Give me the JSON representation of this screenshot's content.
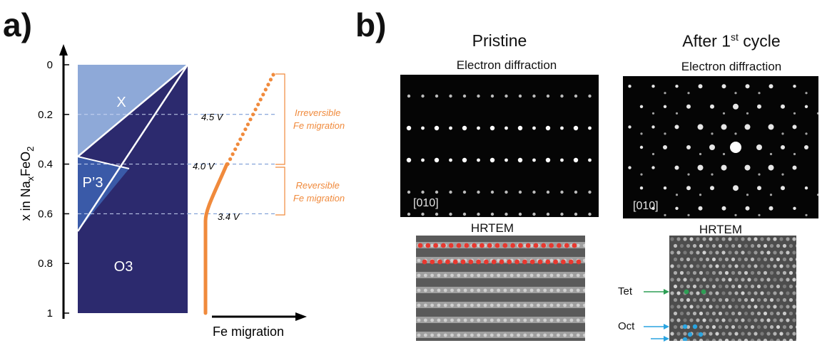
{
  "panel_a": {
    "letter": "a)",
    "y_axis_label_prefix": "x in Na",
    "y_axis_label_sub_x": "x",
    "y_axis_label_mid": "FeO",
    "y_axis_label_sub_2": "2",
    "x_axis_label": "Fe migration",
    "phase_labels": [
      "X",
      "P’3",
      "O3"
    ],
    "voltages": [
      "4.5 V",
      "4.0 V",
      "3.4 V"
    ],
    "annotation_irreversible": [
      "Irreversible",
      "Fe migration"
    ],
    "annotation_reversible": [
      "Reversible",
      "Fe migration"
    ],
    "colors": {
      "phase_x": "#8ea9d8",
      "phase_p3": "#3a5aa8",
      "phase_o3": "#2c2a6e",
      "orange": "#f08a3c",
      "guide": "#6a8fd0"
    }
  },
  "chart_data": {
    "type": "line",
    "xlabel": "Fe migration",
    "ylabel": "x in NaxFeO2",
    "yticks": [
      "0",
      "0.2",
      "0.4",
      "0.6",
      "0.8",
      "1"
    ],
    "ylim": [
      0,
      1
    ],
    "voltage_levels": [
      {
        "x": 0.2,
        "label": "4.5 V"
      },
      {
        "x": 0.4,
        "label": "4.0 V"
      },
      {
        "x": 0.6,
        "label": "3.4 V"
      }
    ],
    "series": [
      {
        "style": "solid",
        "x": [
          1.0,
          0.6,
          0.4
        ]
      },
      {
        "style": "dotted",
        "x": [
          0.4,
          0.04
        ]
      }
    ]
  },
  "panel_b": {
    "letter": "b)",
    "columns": [
      {
        "title": "Pristine",
        "ed_label": "Electron diffraction",
        "zone_axis": "[010]",
        "hrtem_label": "HRTEM"
      },
      {
        "title_main": "After 1",
        "title_sup": "st",
        "title_rest": " cycle",
        "ed_label": "Electron diffraction",
        "zone_axis": "[010]",
        "hrtem_label": "HRTEM",
        "markers": [
          "Tet",
          "Oct"
        ],
        "marker_colors": {
          "tet": "#2e9e55",
          "oct": "#2aa4e0"
        }
      }
    ],
    "dot_color_red": "#e8382f"
  }
}
